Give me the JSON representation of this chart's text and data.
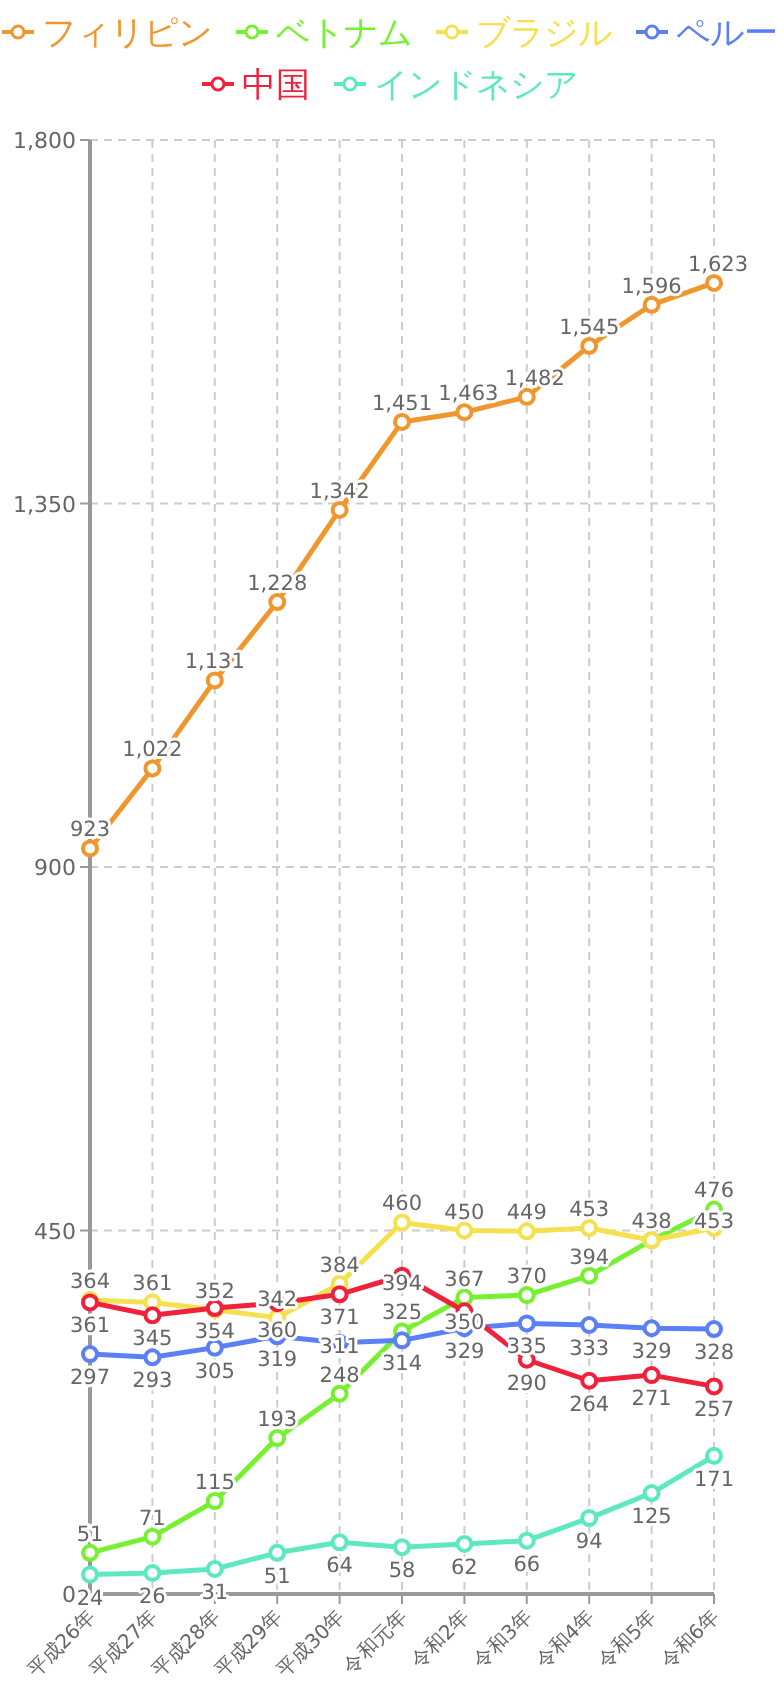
{
  "chart_data": {
    "type": "line",
    "categories": [
      "平成26年",
      "平成27年",
      "平成28年",
      "平成29年",
      "平成30年",
      "令和元年",
      "令和2年",
      "令和3年",
      "令和4年",
      "令和5年",
      "令和6年"
    ],
    "series": [
      {
        "name": "フィリピン",
        "color": "#f0962f",
        "values": [
          923,
          1022,
          1131,
          1228,
          1342,
          1451,
          1463,
          1482,
          1545,
          1596,
          1623
        ],
        "value_labels": [
          "923",
          "1,022",
          "1,131",
          "1,228",
          "1,342",
          "1,451",
          "1,463",
          "1,482",
          "1,545",
          "1,596",
          "1,623"
        ]
      },
      {
        "name": "ベトナム",
        "color": "#77f032",
        "values": [
          51,
          71,
          115,
          193,
          248,
          325,
          367,
          370,
          394,
          438,
          476
        ],
        "value_labels": [
          "51",
          "71",
          "115",
          "193",
          "248",
          "325",
          "367",
          "370",
          "394",
          "438",
          "476"
        ]
      },
      {
        "name": "ブラジル",
        "color": "#f5e050",
        "values": [
          364,
          361,
          352,
          342,
          384,
          460,
          450,
          449,
          453,
          438,
          453
        ],
        "value_labels": [
          "364",
          "361",
          "352",
          "342",
          "384",
          "460",
          "450",
          "449",
          "453",
          null,
          "453"
        ]
      },
      {
        "name": "ペルー",
        "color": "#5b7ff5",
        "values": [
          297,
          293,
          305,
          319,
          311,
          314,
          329,
          335,
          333,
          329,
          328
        ],
        "value_labels": [
          "297",
          "293",
          "305",
          "319",
          "311",
          "314",
          "329",
          "335",
          "333",
          "329",
          "328"
        ]
      },
      {
        "name": "中国",
        "color": "#f0213a",
        "values": [
          361,
          345,
          354,
          360,
          371,
          394,
          350,
          290,
          264,
          271,
          257
        ],
        "value_labels": [
          "361",
          "345",
          "354",
          "360",
          "371",
          "394",
          "350",
          "290",
          "264",
          "271",
          "257"
        ]
      },
      {
        "name": "インドネシア",
        "color": "#5ee8c0",
        "values": [
          24,
          26,
          31,
          51,
          64,
          58,
          62,
          66,
          94,
          125,
          171
        ],
        "value_labels": [
          "24",
          "26",
          "31",
          "51",
          "64",
          "58",
          "62",
          "66",
          "94",
          "125",
          "171"
        ]
      }
    ],
    "ylim": [
      0,
      1800
    ],
    "yticks": [
      0,
      450,
      900,
      {
        "value": 1350,
        "label": "1,350"
      },
      {
        "value": 1800,
        "label": "1,800"
      }
    ],
    "grid": true,
    "legend": "top",
    "marker": "circle",
    "line_style": "solid",
    "data_labels": true
  }
}
